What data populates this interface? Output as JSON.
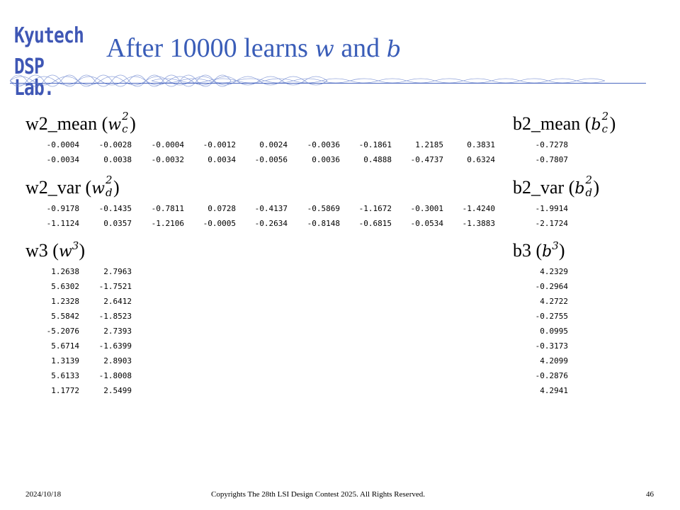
{
  "logo": {
    "line1": "Kyutech",
    "line2": "DSP Lab."
  },
  "title": {
    "prefix": "After 10000 learns ",
    "var1": "w",
    "mid": " and ",
    "var2": "b"
  },
  "sections": {
    "w2_mean": {
      "label": "w2_mean (",
      "sym": "w",
      "sup": "2",
      "sub": "c",
      "close": ")",
      "rows": [
        [
          "-0.0004",
          "-0.0028",
          "-0.0004",
          "-0.0012",
          "0.0024",
          "-0.0036",
          "-0.1861",
          "1.2185",
          "0.3831"
        ],
        [
          "-0.0034",
          "0.0038",
          "-0.0032",
          "0.0034",
          "-0.0056",
          "0.0036",
          "0.4888",
          "-0.4737",
          "0.6324"
        ]
      ]
    },
    "b2_mean": {
      "label": "b2_mean (",
      "sym": "b",
      "sup": "2",
      "sub": "c",
      "close": ")",
      "values": [
        "-0.7278",
        "-0.7807"
      ]
    },
    "w2_var": {
      "label": "w2_var (",
      "sym": "w",
      "sup": "2",
      "sub": "d",
      "close": ")",
      "rows": [
        [
          "-0.9178",
          "-0.1435",
          "-0.7811",
          "0.0728",
          "-0.4137",
          "-0.5869",
          "-1.1672",
          "-0.3001",
          "-1.4240"
        ],
        [
          "-1.1124",
          "0.0357",
          "-1.2106",
          "-0.0005",
          "-0.2634",
          "-0.8148",
          "-0.6815",
          "-0.0534",
          "-1.3883"
        ]
      ]
    },
    "b2_var": {
      "label": "b2_var (",
      "sym": "b",
      "sup": "2",
      "sub": "d",
      "close": ")",
      "values": [
        "-1.9914",
        "-2.1724"
      ]
    },
    "w3": {
      "label": "w3 (",
      "sym": "w",
      "sup": "3",
      "close": ")",
      "rows": [
        [
          "1.2638",
          "2.7963"
        ],
        [
          "5.6302",
          "-1.7521"
        ],
        [
          "1.2328",
          "2.6412"
        ],
        [
          "5.5842",
          "-1.8523"
        ],
        [
          "-5.2076",
          "2.7393"
        ],
        [
          "5.6714",
          "-1.6399"
        ],
        [
          "1.3139",
          "2.8903"
        ],
        [
          "5.6133",
          "-1.8008"
        ],
        [
          "1.1772",
          "2.5499"
        ]
      ]
    },
    "b3": {
      "label": "b3 (",
      "sym": "b",
      "sup": "3",
      "close": ")",
      "values": [
        "4.2329",
        "-0.2964",
        "4.2722",
        "-0.2755",
        "0.0995",
        "-0.3173",
        "4.2099",
        "-0.2876",
        "4.2941"
      ]
    }
  },
  "footer": {
    "date": "2024/10/18",
    "copyright": "Copyrights The 28th LSI Design Contest 2025.  All Rights Reserved.",
    "page": "46"
  }
}
